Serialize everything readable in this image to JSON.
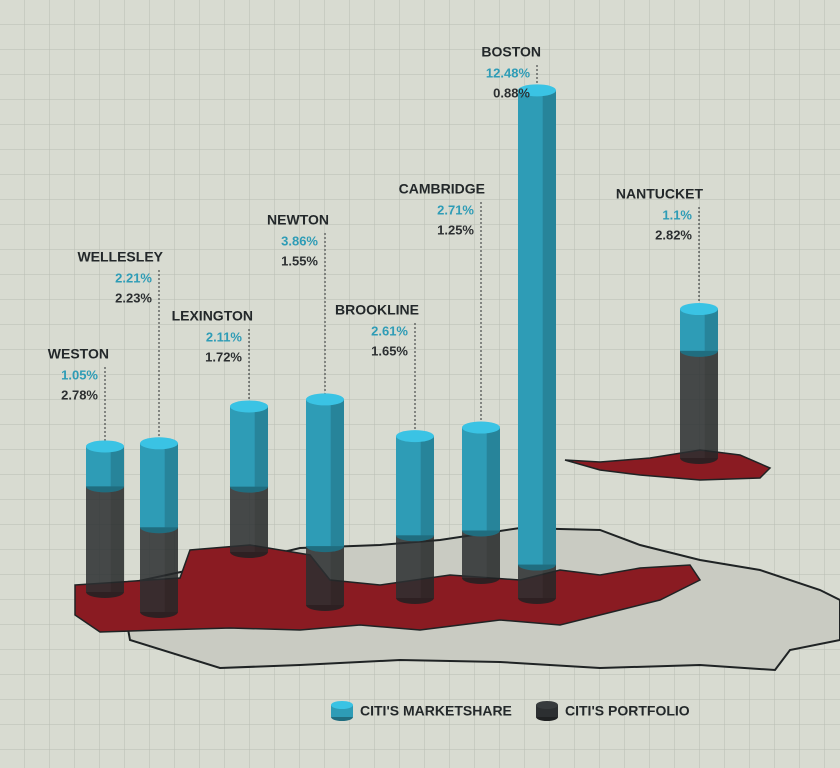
{
  "chart_data": {
    "type": "cylinder",
    "categories": [
      "WESTON",
      "WELLESLEY",
      "LEXINGTON",
      "NEWTON",
      "BROOKLINE",
      "CAMBRIDGE",
      "BOSTON",
      "NANTUCKET"
    ],
    "series": [
      {
        "name": "CITI'S MARKETSHARE",
        "color": "#2e9cb6",
        "values": [
          1.05,
          2.21,
          2.11,
          3.86,
          2.61,
          2.71,
          12.48,
          1.1
        ],
        "value_labels": [
          "1.05%",
          "2.21%",
          "2.11%",
          "3.86%",
          "2.61%",
          "2.71%",
          "12.48%",
          "1.1%"
        ]
      },
      {
        "name": "CITI'S PORTFOLIO",
        "color": "#2c2f31",
        "values": [
          2.78,
          2.23,
          1.72,
          1.55,
          1.65,
          1.25,
          0.88,
          2.82
        ],
        "value_labels": [
          "2.78%",
          "2.23%",
          "1.72%",
          "1.55%",
          "1.65%",
          "1.25%",
          "0.88%",
          "2.82%"
        ]
      }
    ]
  }
}
